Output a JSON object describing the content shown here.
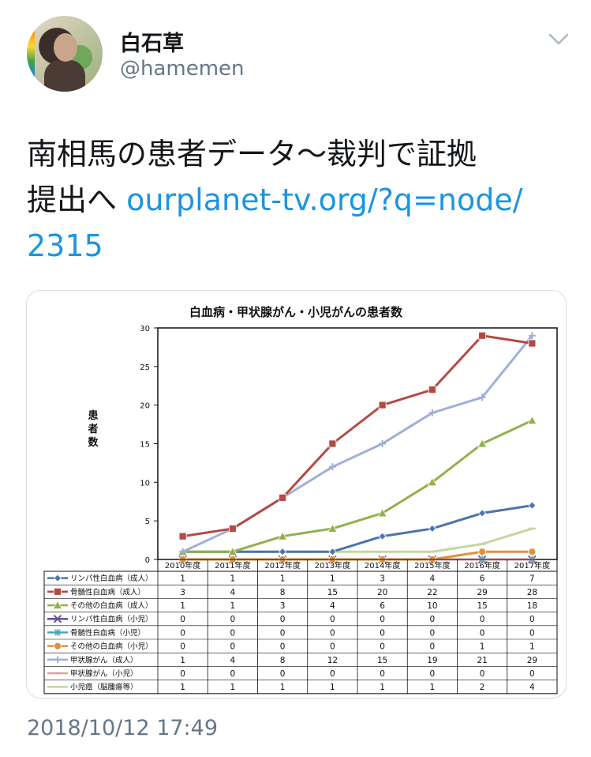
{
  "tweet": {
    "author_name": "白石草",
    "author_handle": "@hamemen",
    "text_line1": "南相馬の患者データ〜裁判で証拠",
    "text_line2_prefix": "提出へ ",
    "link_line1": "ourplanet-tv.org/?q=node/",
    "link_line2": "2315",
    "timestamp": "2018/10/12 17:49",
    "menu_icon": "chevron-down-icon",
    "link_color": "#1b95e0"
  },
  "chart_data": {
    "type": "line",
    "title": "白血病・甲状腺がん・小児がんの患者数",
    "ylabel": "患者数",
    "xlabel": "",
    "ylim": [
      0,
      30
    ],
    "yticks": [
      "0",
      "5",
      "10",
      "15",
      "20",
      "25",
      "30"
    ],
    "categories": [
      "2010年度",
      "2011年度",
      "2012年度",
      "2013年度",
      "2014年度",
      "2015年度",
      "2016年度",
      "2017年度"
    ],
    "grid": false,
    "legend": "table-below",
    "series": [
      {
        "name": "リンパ性白血病（成人）",
        "values": [
          1,
          1,
          1,
          1,
          3,
          4,
          6,
          7
        ],
        "color": "#4f72b0",
        "marker": "diamond"
      },
      {
        "name": "骨髄性白血病（成人）",
        "values": [
          3,
          4,
          8,
          15,
          20,
          22,
          29,
          28
        ],
        "color": "#b34a45",
        "marker": "square"
      },
      {
        "name": "その他の白血病（成人）",
        "values": [
          1,
          1,
          3,
          4,
          6,
          10,
          15,
          18
        ],
        "color": "#92b04a",
        "marker": "triangle"
      },
      {
        "name": "リンパ性白血病（小児）",
        "values": [
          0,
          0,
          0,
          0,
          0,
          0,
          0,
          0
        ],
        "color": "#6b4f96",
        "marker": "x"
      },
      {
        "name": "骨髄性白血病（小児）",
        "values": [
          0,
          0,
          0,
          0,
          0,
          0,
          0,
          0
        ],
        "color": "#4aa3c2",
        "marker": "star"
      },
      {
        "name": "その他の白血病（小児）",
        "values": [
          0,
          0,
          0,
          0,
          0,
          0,
          1,
          1
        ],
        "color": "#e0913a",
        "marker": "circle"
      },
      {
        "name": "甲状腺がん（成人）",
        "values": [
          1,
          4,
          8,
          12,
          15,
          19,
          21,
          29
        ],
        "color": "#9fb0d8",
        "marker": "plus"
      },
      {
        "name": "甲状腺がん（小児）",
        "values": [
          0,
          0,
          0,
          0,
          0,
          0,
          0,
          0
        ],
        "color": "#d9a3a0",
        "marker": "dash"
      },
      {
        "name": "小児癌（脳腫瘍等）",
        "values": [
          1,
          1,
          1,
          1,
          1,
          1,
          2,
          4
        ],
        "color": "#c6d6a2",
        "marker": "dash"
      }
    ]
  }
}
